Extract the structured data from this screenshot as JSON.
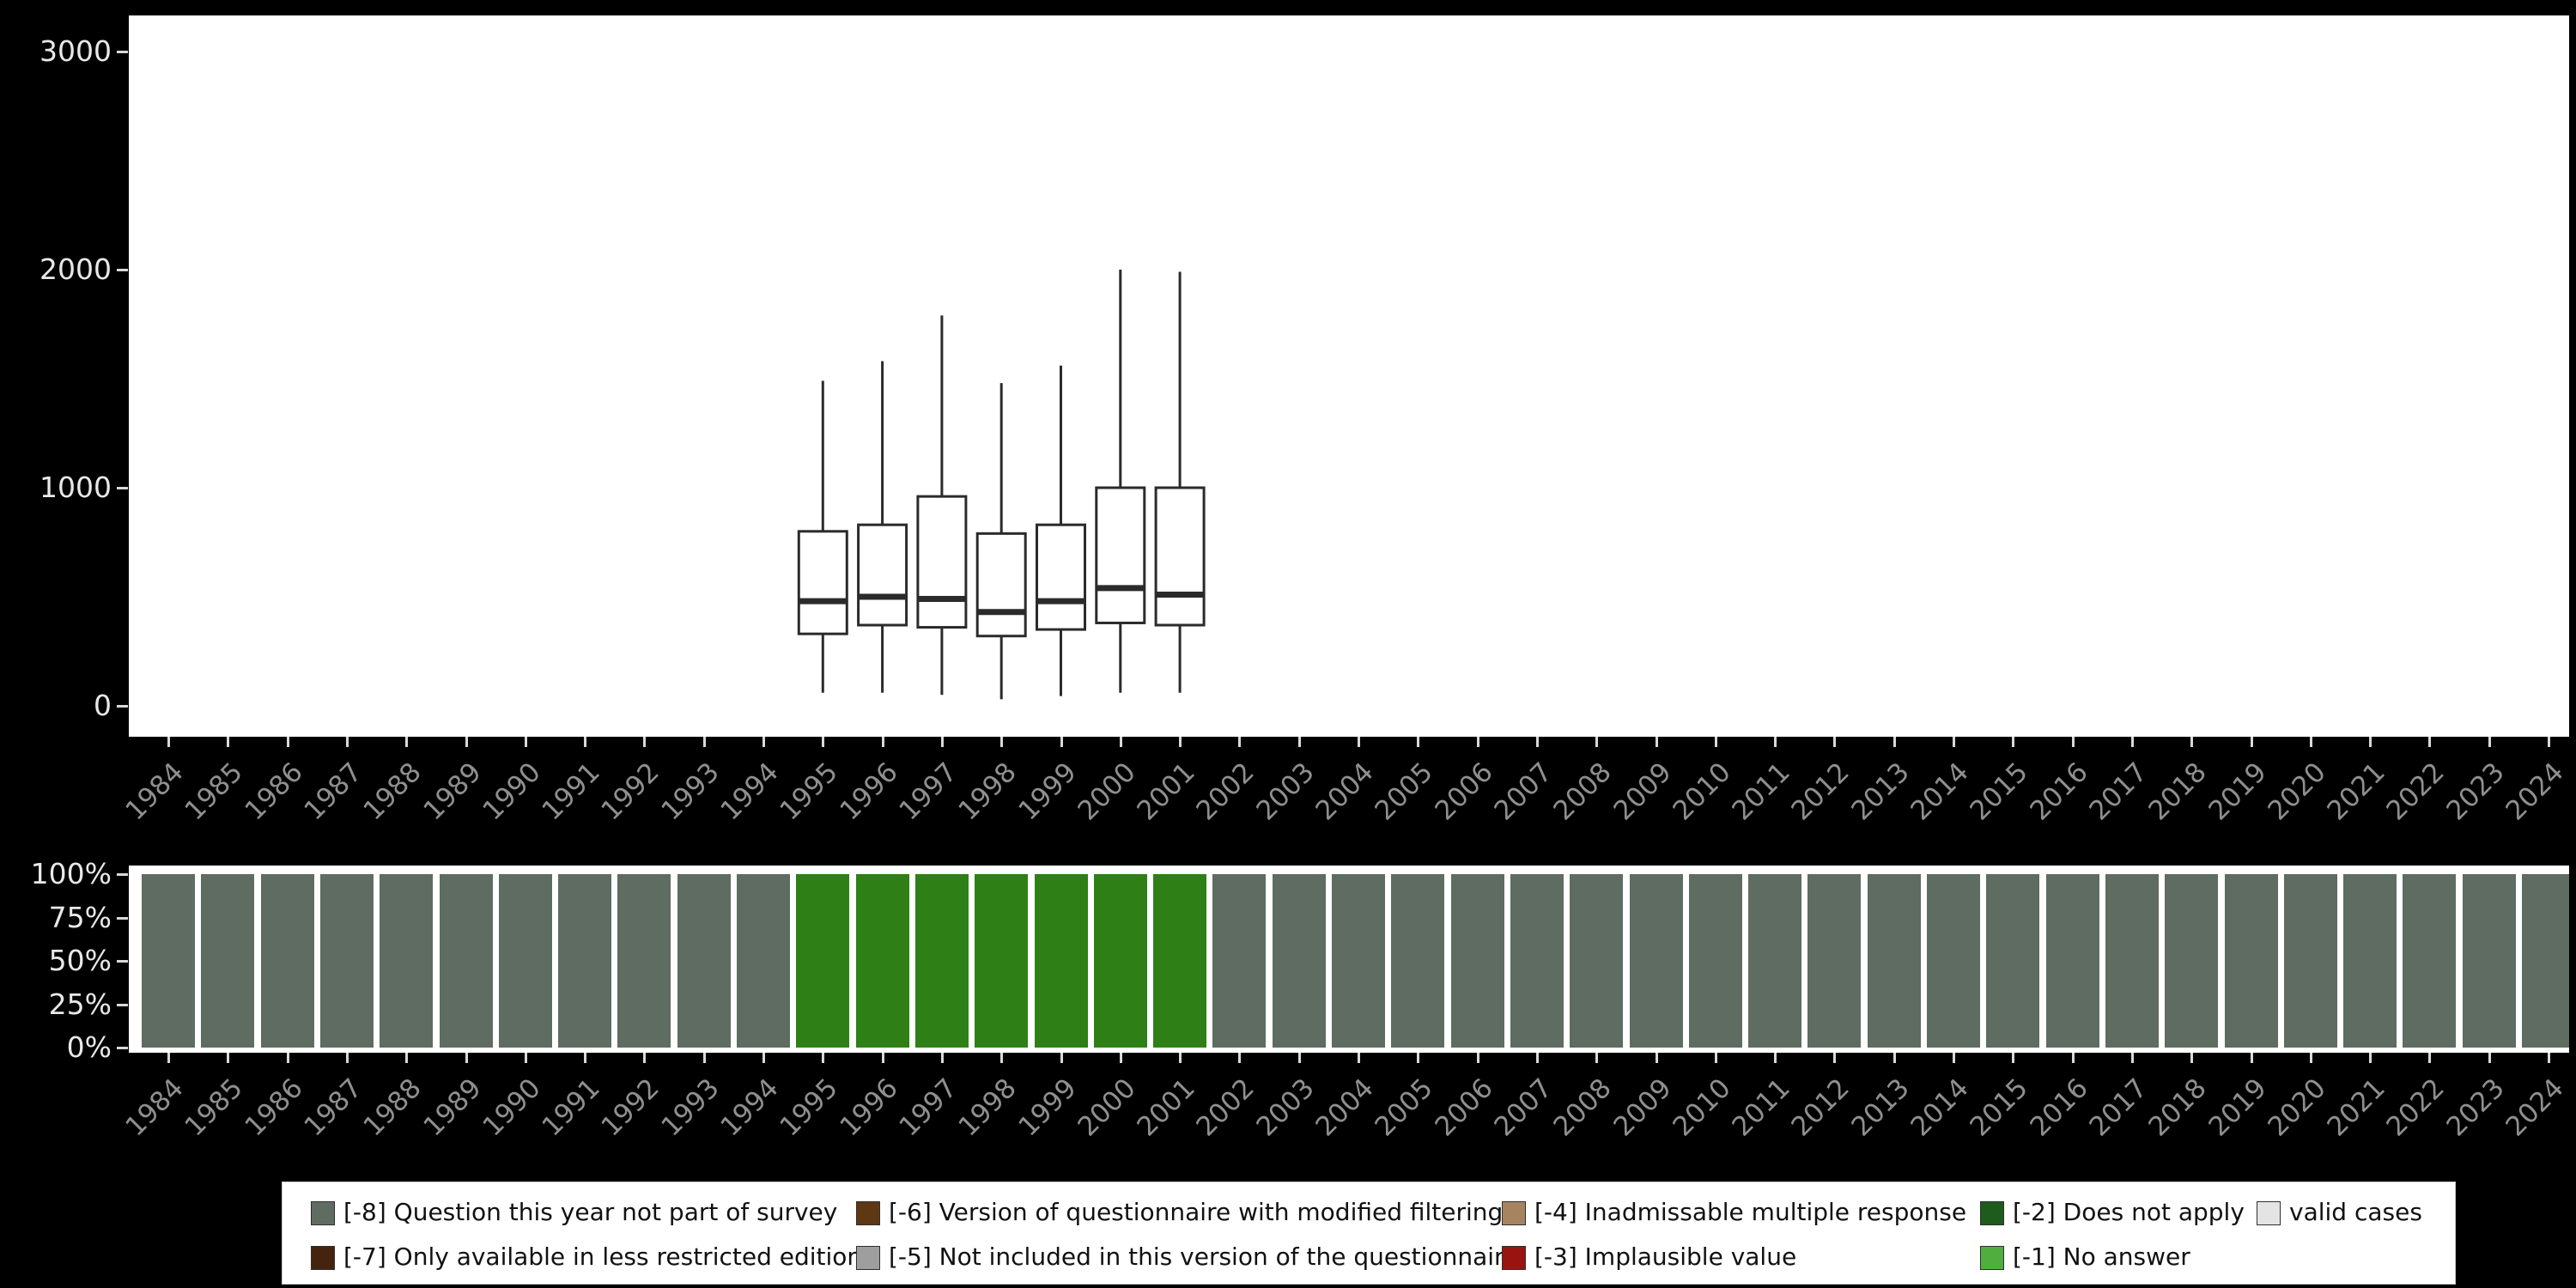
{
  "colors": {
    "background": "#000000",
    "panel": "#ffffff",
    "box_stroke": "#2b2b2b",
    "box_fill": "#ffffff",
    "axis_text": "#e8e8e8",
    "year_text": "#8f8f8f",
    "tick": "#d9d9d9",
    "bar_not_surveyed": "#5e6c62",
    "bar_data_present": "#2e8016"
  },
  "top_axis": {
    "tick_labels": [
      "3000",
      "2000",
      "1000",
      "0"
    ],
    "tick_values": [
      3000,
      2000,
      1000,
      0
    ]
  },
  "bottom_axis": {
    "tick_labels": [
      "100%",
      "75%",
      "50%",
      "25%",
      "0%"
    ],
    "tick_values": [
      100,
      75,
      50,
      25,
      0
    ]
  },
  "chart_data": [
    {
      "type": "boxplot",
      "title": "",
      "xlabel": "",
      "ylabel": "",
      "ylim": [
        0,
        3000
      ],
      "yticks": [
        0,
        1000,
        2000,
        3000
      ],
      "x": [
        1984,
        1985,
        1986,
        1987,
        1988,
        1989,
        1990,
        1991,
        1992,
        1993,
        1994,
        1995,
        1996,
        1997,
        1998,
        1999,
        2000,
        2001,
        2002,
        2003,
        2004,
        2005,
        2006,
        2007,
        2008,
        2009,
        2010,
        2011,
        2012,
        2013,
        2014,
        2015,
        2016,
        2017,
        2018,
        2019,
        2020,
        2021,
        2022,
        2023,
        2024
      ],
      "boxes": [
        {
          "year": 1995,
          "whisker_low": 60,
          "q1": 330,
          "median": 480,
          "q3": 800,
          "whisker_high": 1490
        },
        {
          "year": 1996,
          "whisker_low": 60,
          "q1": 370,
          "median": 500,
          "q3": 830,
          "whisker_high": 1580
        },
        {
          "year": 1997,
          "whisker_low": 50,
          "q1": 360,
          "median": 490,
          "q3": 960,
          "whisker_high": 1790
        },
        {
          "year": 1998,
          "whisker_low": 30,
          "q1": 320,
          "median": 430,
          "q3": 790,
          "whisker_high": 1480
        },
        {
          "year": 1999,
          "whisker_low": 45,
          "q1": 350,
          "median": 480,
          "q3": 830,
          "whisker_high": 1560
        },
        {
          "year": 2000,
          "whisker_low": 60,
          "q1": 380,
          "median": 540,
          "q3": 1000,
          "whisker_high": 2000
        },
        {
          "year": 2001,
          "whisker_low": 60,
          "q1": 370,
          "median": 510,
          "q3": 1000,
          "whisker_high": 1990
        }
      ]
    },
    {
      "type": "bar",
      "stacking": "percent_100",
      "title": "",
      "xlabel": "",
      "ylabel": "",
      "ylim": [
        0,
        100
      ],
      "yticks": [
        "0%",
        "25%",
        "50%",
        "75%",
        "100%"
      ],
      "categories": [
        1984,
        1985,
        1986,
        1987,
        1988,
        1989,
        1990,
        1991,
        1992,
        1993,
        1994,
        1995,
        1996,
        1997,
        1998,
        1999,
        2000,
        2001,
        2002,
        2003,
        2004,
        2005,
        2006,
        2007,
        2008,
        2009,
        2010,
        2011,
        2012,
        2013,
        2014,
        2015,
        2016,
        2017,
        2018,
        2019,
        2020,
        2021,
        2022,
        2023,
        2024
      ],
      "series": [
        {
          "name": "[-8] Question this year not part of survey",
          "color_key": "bar_not_surveyed",
          "values": [
            100,
            100,
            100,
            100,
            100,
            100,
            100,
            100,
            100,
            100,
            100,
            0,
            0,
            0,
            0,
            0,
            0,
            0,
            100,
            100,
            100,
            100,
            100,
            100,
            100,
            100,
            100,
            100,
            100,
            100,
            100,
            100,
            100,
            100,
            100,
            100,
            100,
            100,
            100,
            100,
            100
          ]
        },
        {
          "name": "[-2] Does not apply",
          "color_key": "bar_data_present",
          "values": [
            0,
            0,
            0,
            0,
            0,
            0,
            0,
            0,
            0,
            0,
            0,
            100,
            100,
            100,
            100,
            100,
            100,
            100,
            0,
            0,
            0,
            0,
            0,
            0,
            0,
            0,
            0,
            0,
            0,
            0,
            0,
            0,
            0,
            0,
            0,
            0,
            0,
            0,
            0,
            0,
            0
          ]
        }
      ]
    }
  ],
  "legend": {
    "rows": [
      [
        {
          "label": "[-8] Question this year not part of survey",
          "color": "#5e6c62"
        },
        {
          "label": "[-6] Version of questionnaire with modified filtering",
          "color": "#5e3813"
        },
        {
          "label": "[-4] Inadmissable multiple response",
          "color": "#a8845e"
        },
        {
          "label": "[-2] Does not apply",
          "color": "#1d5c1b"
        },
        {
          "label": "valid cases",
          "color": "#e4e4e4"
        }
      ],
      [
        {
          "label": "[-7] Only available in less restricted edition",
          "color": "#45240f"
        },
        {
          "label": "[-5] Not included in this version of the questionnaire",
          "color": "#9e9e9e"
        },
        {
          "label": "[-3] Implausible value",
          "color": "#991410"
        },
        {
          "label": "[-1] No answer",
          "color": "#4fae3d"
        }
      ]
    ]
  }
}
